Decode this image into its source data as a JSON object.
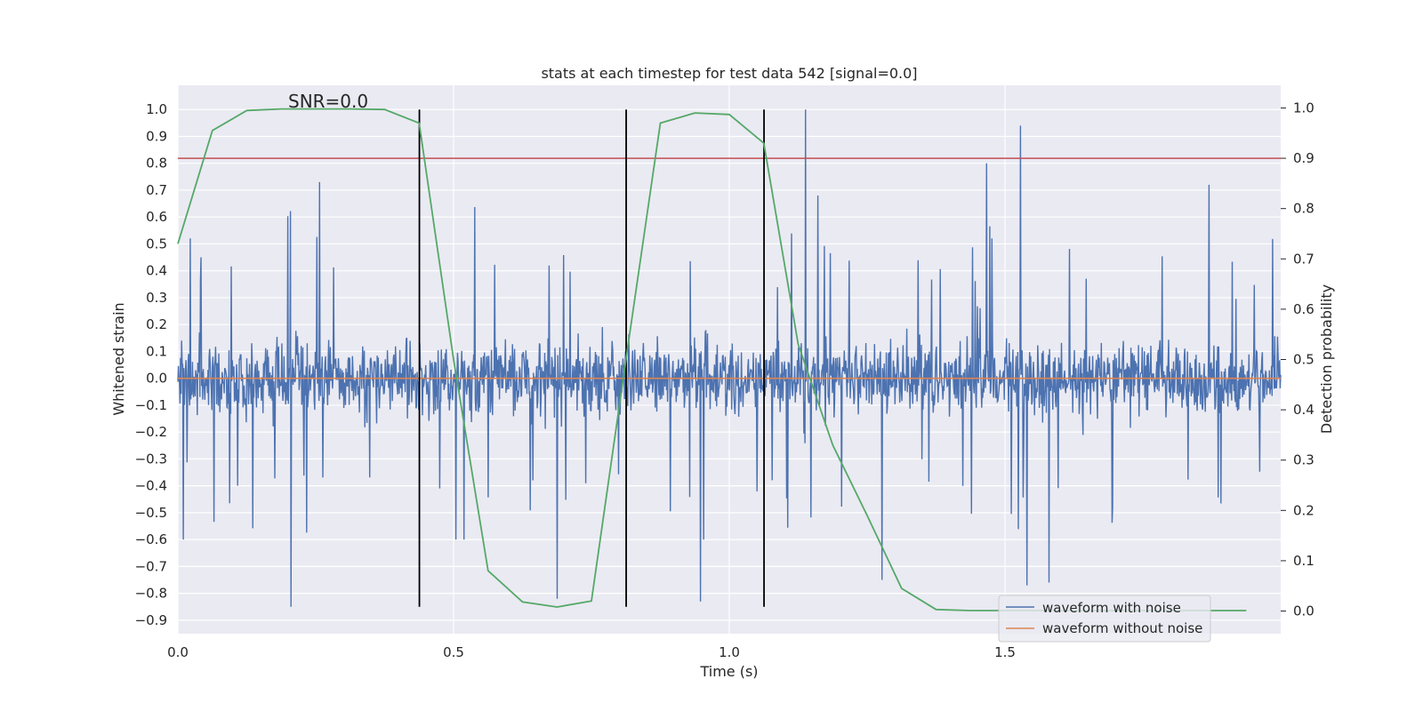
{
  "chart_data": {
    "type": "line",
    "title": "stats at each timestep for test data 542 [signal=0.0]",
    "xlabel": "Time (s)",
    "ylabel": "Whitened strain",
    "y2label": "Detection probability",
    "xlim": [
      0.0,
      2.0
    ],
    "ylim": [
      -0.95,
      1.09
    ],
    "y2lim": [
      -0.045,
      1.045
    ],
    "x_ticks": [
      0.0,
      0.5,
      1.0,
      1.5
    ],
    "x_tick_labels": [
      "0.0",
      "0.5",
      "1.0",
      "1.5"
    ],
    "y_ticks": [
      1.0,
      0.9,
      0.8,
      0.7,
      0.6,
      0.5,
      0.4,
      0.3,
      0.2,
      0.1,
      0.0,
      -0.1,
      -0.2,
      -0.3,
      -0.4,
      -0.5,
      -0.6,
      -0.7,
      -0.8,
      -0.9
    ],
    "y_tick_labels": [
      "1.0",
      "0.9",
      "0.8",
      "0.7",
      "0.6",
      "0.5",
      "0.4",
      "0.3",
      "0.2",
      "0.1",
      "0.0",
      "−0.1",
      "−0.2",
      "−0.3",
      "−0.4",
      "−0.5",
      "−0.6",
      "−0.7",
      "−0.8",
      "−0.9"
    ],
    "y2_ticks": [
      1.0,
      0.9,
      0.8,
      0.7,
      0.6,
      0.5,
      0.4,
      0.3,
      0.2,
      0.1,
      0.0
    ],
    "y2_tick_labels": [
      "1.0",
      "0.9",
      "0.8",
      "0.7",
      "0.6",
      "0.5",
      "0.4",
      "0.3",
      "0.2",
      "0.1",
      "0.0"
    ],
    "grid": true,
    "annotation": "SNR=0.0",
    "annotation_at": {
      "x": 0.2,
      "y": 1.0
    },
    "threshold": {
      "value": 0.9,
      "axis": "y2",
      "color": "#c44e52"
    },
    "vlines": {
      "x": [
        0.438,
        0.813,
        1.063
      ],
      "y_range": [
        -0.85,
        1.0
      ],
      "color": "#000000"
    },
    "noise_trace": {
      "description_values": "dense random noise trace, 2048 samples, mostly within [-0.5, 0.7]",
      "samples": 2048,
      "seed": 542,
      "spikes": [
        {
          "x": 0.205,
          "y": -0.85
        },
        {
          "x": 0.257,
          "y": 0.73
        },
        {
          "x": 0.688,
          "y": -0.82
        },
        {
          "x": 0.948,
          "y": -0.83
        },
        {
          "x": 1.138,
          "y": 1.0
        },
        {
          "x": 1.277,
          "y": -0.75
        },
        {
          "x": 1.467,
          "y": 0.8
        },
        {
          "x": 1.528,
          "y": 0.94
        },
        {
          "x": 1.54,
          "y": -0.77
        },
        {
          "x": 1.58,
          "y": -0.76
        },
        {
          "x": 1.87,
          "y": 0.72
        }
      ]
    },
    "series": [
      {
        "name": "waveform with noise",
        "color": "#4c72b0",
        "axis": "y"
      },
      {
        "name": "waveform without noise",
        "color": "#dd8452",
        "axis": "y",
        "x": [
          0.0,
          2.0
        ],
        "y": [
          0.0,
          0.0
        ]
      },
      {
        "color": "#55a868",
        "axis": "y2",
        "x": [
          0.0,
          0.0625,
          0.125,
          0.1875,
          0.25,
          0.3125,
          0.375,
          0.4375,
          0.5,
          0.5625,
          0.625,
          0.6875,
          0.75,
          0.8125,
          0.875,
          0.9375,
          1.0,
          1.0625,
          1.125,
          1.1875,
          1.25,
          1.3125,
          1.375,
          1.4375,
          1.5,
          1.5625,
          1.625,
          1.6875,
          1.75,
          1.8125,
          1.875,
          1.9375
        ],
        "y": [
          0.73,
          0.955,
          0.995,
          0.998,
          0.998,
          0.998,
          0.997,
          0.97,
          0.5,
          0.08,
          0.018,
          0.008,
          0.02,
          0.5,
          0.97,
          0.99,
          0.987,
          0.93,
          0.53,
          0.33,
          0.19,
          0.045,
          0.003,
          0.001,
          0.001,
          0.001,
          0.001,
          0.001,
          0.001,
          0.001,
          0.001,
          0.001
        ]
      }
    ],
    "legend": {
      "placement": "lower-right",
      "entries": [
        "waveform with noise",
        "waveform without noise"
      ]
    }
  }
}
